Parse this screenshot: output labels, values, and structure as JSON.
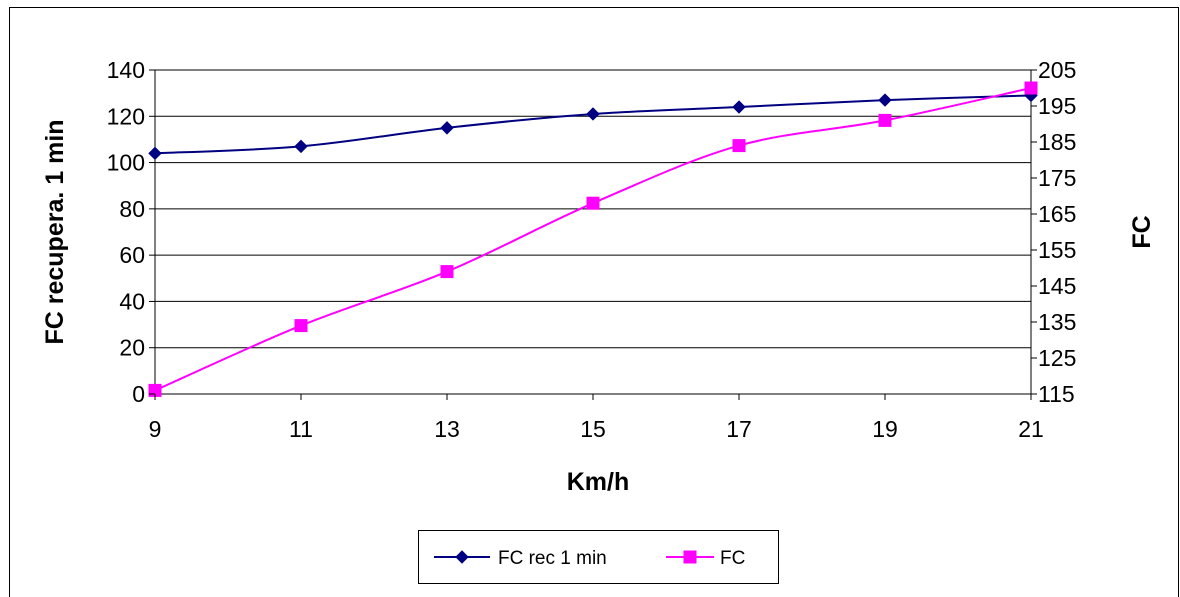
{
  "chart_data": {
    "type": "line",
    "title": "",
    "xlabel": "Km/h",
    "ylabel_left": "FC recupera. 1 min",
    "ylabel_right": "FC",
    "x": [
      9,
      11,
      13,
      15,
      17,
      19,
      21
    ],
    "x_ticks": [
      "9",
      "11",
      "13",
      "15",
      "17",
      "19",
      "21"
    ],
    "ylim_left": [
      0,
      140
    ],
    "y_ticks_left": [
      "0",
      "20",
      "40",
      "60",
      "80",
      "100",
      "120",
      "140"
    ],
    "ylim_right": [
      115,
      205
    ],
    "y_ticks_right": [
      "115",
      "125",
      "135",
      "145",
      "155",
      "165",
      "175",
      "185",
      "195",
      "205"
    ],
    "grid": "horizontal",
    "legend_position": "bottom-center",
    "series": [
      {
        "name": "FC rec 1 min",
        "axis": "left",
        "marker": "diamond",
        "color": "#000080",
        "values": [
          104,
          107,
          115,
          121,
          124,
          127,
          129
        ]
      },
      {
        "name": "FC",
        "axis": "right",
        "marker": "square",
        "color": "#ff00ff",
        "values": [
          116,
          134,
          149,
          168,
          184,
          191,
          200
        ]
      }
    ]
  }
}
